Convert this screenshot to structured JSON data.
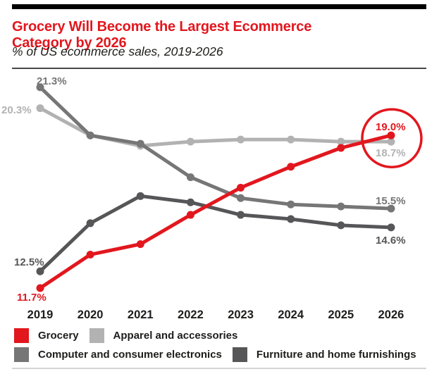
{
  "header": {
    "title": "Grocery Will Become the Largest Ecommerce Category by 2026",
    "subtitle": "% of US ecommerce sales, 2019-2026"
  },
  "accent_color": "#e2171e",
  "text_color": "#1d1d1b",
  "chart_data": {
    "type": "line",
    "title": "Grocery Will Become the Largest Ecommerce Category by 2026",
    "subtitle": "% of US ecommerce sales, 2019-2026",
    "x": [
      2019,
      2020,
      2021,
      2022,
      2023,
      2024,
      2025,
      2026
    ],
    "xlabel": "",
    "ylabel": "% of US ecommerce sales",
    "ylim": [
      11,
      22
    ],
    "grid": false,
    "legend_position": "bottom",
    "series": [
      {
        "name": "Grocery",
        "color": "#e2171e",
        "values": [
          11.7,
          13.3,
          13.8,
          15.2,
          16.5,
          17.5,
          18.4,
          19.0
        ]
      },
      {
        "name": "Apparel and accessories",
        "color": "#b2b2b2",
        "values": [
          20.3,
          19.0,
          18.5,
          18.7,
          18.8,
          18.8,
          18.7,
          18.7
        ]
      },
      {
        "name": "Computer and consumer electronics",
        "color": "#767676",
        "values": [
          21.3,
          19.0,
          18.6,
          17.0,
          16.0,
          15.7,
          15.6,
          15.5
        ]
      },
      {
        "name": "Furniture and home furnishings",
        "color": "#565658",
        "values": [
          12.5,
          14.8,
          16.1,
          15.8,
          15.2,
          15.0,
          14.7,
          14.6
        ]
      }
    ],
    "point_labels": [
      {
        "series": "Computer and consumer electronics",
        "year": 2019,
        "text": "21.3%"
      },
      {
        "series": "Apparel and accessories",
        "year": 2019,
        "text": "20.3%"
      },
      {
        "series": "Furniture and home furnishings",
        "year": 2019,
        "text": "12.5%"
      },
      {
        "series": "Grocery",
        "year": 2019,
        "text": "11.7%"
      },
      {
        "series": "Grocery",
        "year": 2026,
        "text": "19.0%"
      },
      {
        "series": "Apparel and accessories",
        "year": 2026,
        "text": "18.7%"
      },
      {
        "series": "Computer and consumer electronics",
        "year": 2026,
        "text": "15.5%"
      },
      {
        "series": "Furniture and home furnishings",
        "year": 2026,
        "text": "14.6%"
      }
    ],
    "annotation": {
      "shape": "circle",
      "series": "Grocery",
      "year": 2026,
      "color": "#e2171e"
    }
  }
}
